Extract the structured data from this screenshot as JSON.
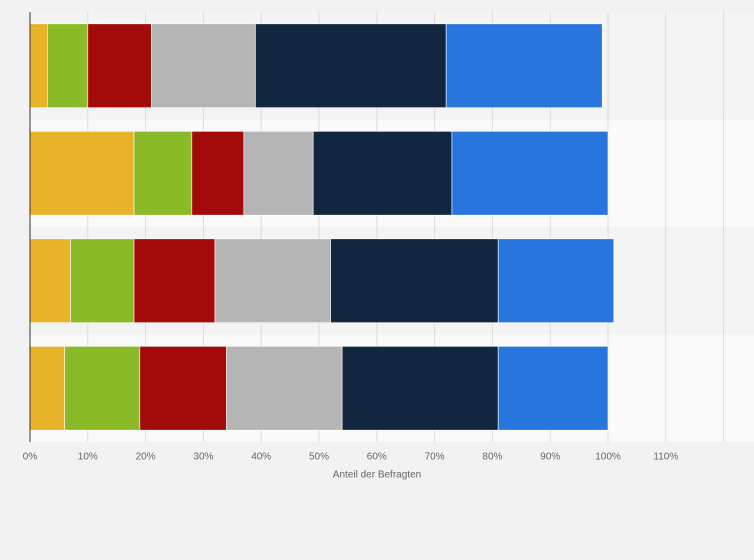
{
  "chart_data": {
    "type": "stacked-bar-horizontal",
    "x_label": "Anteil der Befragten",
    "categories": [
      null,
      null,
      null,
      null
    ],
    "series": [
      {
        "color": "#e8b328",
        "values": [
          3,
          18,
          7,
          6
        ]
      },
      {
        "color": "#8aba27",
        "values": [
          7,
          10,
          11,
          13
        ]
      },
      {
        "color": "#a30b0b",
        "values": [
          11,
          9,
          14,
          15
        ]
      },
      {
        "color": "#b5b5b5",
        "values": [
          18,
          12,
          20,
          20
        ]
      },
      {
        "color": "#12263e",
        "values": [
          33,
          24,
          29,
          27
        ]
      },
      {
        "color": "#2876dd",
        "values": [
          27,
          27,
          20,
          19
        ]
      }
    ],
    "xlim": [
      0,
      120
    ],
    "xticks": [
      {
        "value": 0,
        "label": "0%"
      },
      {
        "value": 10,
        "label": "10%"
      },
      {
        "value": 20,
        "label": "20%"
      },
      {
        "value": 30,
        "label": "30%"
      },
      {
        "value": 40,
        "label": "40%"
      },
      {
        "value": 50,
        "label": "50%"
      },
      {
        "value": 60,
        "label": "60%"
      },
      {
        "value": 70,
        "label": "70%"
      },
      {
        "value": 80,
        "label": "80%"
      },
      {
        "value": 90,
        "label": "90%"
      },
      {
        "value": 100,
        "label": "100%"
      },
      {
        "value": 110,
        "label": "110%"
      }
    ],
    "grid": true
  }
}
